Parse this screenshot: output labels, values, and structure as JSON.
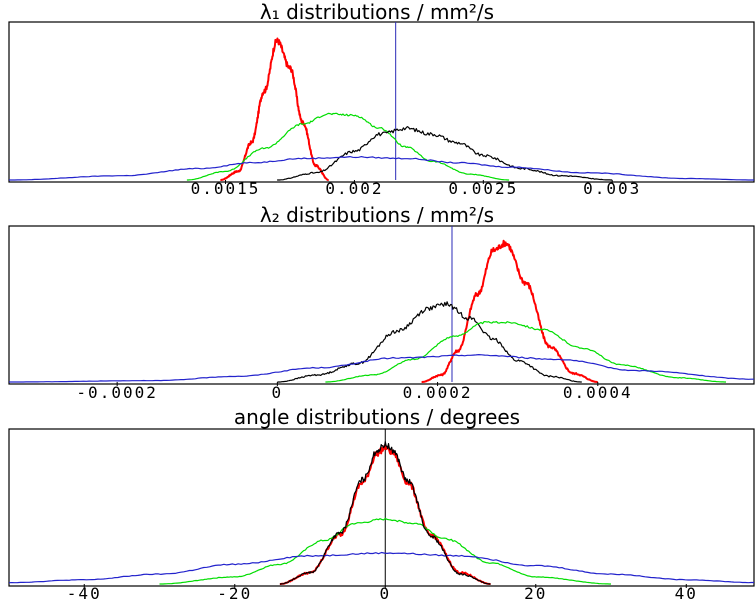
{
  "chart_data": [
    {
      "type": "line",
      "title": "λ₁ distributions / mm²/s",
      "xlim": [
        0.00066,
        0.00355
      ],
      "ylim": [
        0,
        1.1
      ],
      "x_ticks": [
        0.0015,
        0.002,
        0.0025,
        0.003
      ],
      "x_tick_labels": [
        "0.0015",
        "0.002",
        "0.0025",
        "0.003"
      ],
      "vline": {
        "x": 0.00216,
        "color": "#2a2ab8"
      },
      "grid": false,
      "series": [
        {
          "color": "#ff0000",
          "x": [
            0.00148,
            0.00155,
            0.0016,
            0.00165,
            0.0017,
            0.00175,
            0.0018,
            0.00185,
            0.0019
          ],
          "y": [
            0.0,
            0.06,
            0.26,
            0.62,
            0.97,
            0.78,
            0.4,
            0.1,
            0.0
          ]
        },
        {
          "color": "#00dd00",
          "x": [
            0.00135,
            0.0015,
            0.00165,
            0.0018,
            0.0019,
            0.002,
            0.0021,
            0.0022,
            0.0023,
            0.00245,
            0.0026
          ],
          "y": [
            0.0,
            0.06,
            0.22,
            0.39,
            0.46,
            0.45,
            0.36,
            0.23,
            0.13,
            0.04,
            0.0
          ]
        },
        {
          "color": "#000000",
          "x": [
            0.0017,
            0.00185,
            0.002,
            0.0021,
            0.0022,
            0.0023,
            0.0024,
            0.0025,
            0.00265,
            0.0028,
            0.003
          ],
          "y": [
            0.0,
            0.05,
            0.2,
            0.32,
            0.36,
            0.32,
            0.26,
            0.17,
            0.08,
            0.03,
            0.0
          ]
        },
        {
          "color": "#2222cc",
          "x": [
            0.00066,
            0.0011,
            0.0014,
            0.0016,
            0.0018,
            0.002,
            0.0022,
            0.0024,
            0.0026,
            0.0029,
            0.0033,
            0.00355
          ],
          "y": [
            0.0,
            0.03,
            0.08,
            0.12,
            0.15,
            0.16,
            0.15,
            0.12,
            0.09,
            0.05,
            0.01,
            0.0
          ]
        }
      ]
    },
    {
      "type": "line",
      "title": "λ₂ distributions / mm²/s",
      "xlim": [
        -0.000335,
        0.000595
      ],
      "ylim": [
        0,
        1.1
      ],
      "x_ticks": [
        -0.0002,
        0,
        0.0002,
        0.0004
      ],
      "x_tick_labels": [
        "-0.0002",
        "0",
        "0.0002",
        "0.0004"
      ],
      "vline": {
        "x": 0.000218,
        "color": "#2a2ab8"
      },
      "grid": false,
      "series": [
        {
          "color": "#ff0000",
          "x": [
            0.00018,
            0.000205,
            0.000225,
            0.00025,
            0.00027,
            0.000285,
            0.00031,
            0.00034,
            0.00037,
            0.0004
          ],
          "y": [
            0.0,
            0.05,
            0.22,
            0.62,
            0.93,
            0.98,
            0.7,
            0.25,
            0.06,
            0.0
          ]
        },
        {
          "color": "#000000",
          "x": [
            0.0,
            5e-05,
            0.0001,
            0.00015,
            0.00019,
            0.00021,
            0.00024,
            0.00027,
            0.0003,
            0.00034,
            0.00038
          ],
          "y": [
            0.0,
            0.05,
            0.13,
            0.36,
            0.52,
            0.55,
            0.45,
            0.3,
            0.15,
            0.04,
            0.0
          ]
        },
        {
          "color": "#00dd00",
          "x": [
            6e-05,
            0.00012,
            0.00017,
            0.00022,
            0.00026,
            0.00029,
            0.00033,
            0.00038,
            0.00043,
            0.0005,
            0.00056
          ],
          "y": [
            0.0,
            0.05,
            0.16,
            0.32,
            0.42,
            0.42,
            0.37,
            0.24,
            0.12,
            0.03,
            0.0
          ]
        },
        {
          "color": "#2222cc",
          "x": [
            -0.000335,
            -0.00015,
            -5e-05,
            5e-05,
            0.00015,
            0.00025,
            0.00035,
            0.00045,
            0.000595
          ],
          "y": [
            0.0,
            0.01,
            0.04,
            0.1,
            0.17,
            0.19,
            0.16,
            0.08,
            0.02
          ]
        }
      ]
    },
    {
      "type": "line",
      "title": "angle distributions / degrees",
      "xlim": [
        -50,
        49
      ],
      "ylim": [
        0,
        1.1
      ],
      "x_ticks": [
        -40,
        -20,
        0,
        20,
        40
      ],
      "x_tick_labels": [
        "-40",
        "-20",
        "0",
        "20",
        "40"
      ],
      "vline": {
        "x": 0,
        "color": "#000000"
      },
      "grid": false,
      "series": [
        {
          "color": "#ff0000",
          "x": [
            -14,
            -10,
            -6,
            -3,
            -1,
            0,
            1,
            3,
            6,
            10,
            14
          ],
          "y": [
            0.0,
            0.08,
            0.35,
            0.72,
            0.93,
            0.97,
            0.93,
            0.72,
            0.35,
            0.08,
            0.0
          ]
        },
        {
          "color": "#000000",
          "x": [
            -14,
            -10,
            -6,
            -3,
            -1,
            0,
            1,
            3,
            6,
            10,
            14
          ],
          "y": [
            0.0,
            0.08,
            0.36,
            0.74,
            0.95,
            0.99,
            0.95,
            0.73,
            0.34,
            0.07,
            0.0
          ]
        },
        {
          "color": "#00dd00",
          "x": [
            -30,
            -20,
            -14,
            -8,
            -4,
            0,
            4,
            8,
            14,
            20,
            30
          ],
          "y": [
            0.0,
            0.05,
            0.14,
            0.31,
            0.43,
            0.46,
            0.43,
            0.32,
            0.15,
            0.05,
            0.0
          ]
        },
        {
          "color": "#2222cc",
          "x": [
            -50,
            -40,
            -30,
            -20,
            -10,
            0,
            10,
            20,
            30,
            40,
            49
          ],
          "y": [
            0.01,
            0.03,
            0.07,
            0.14,
            0.2,
            0.22,
            0.2,
            0.13,
            0.07,
            0.03,
            0.01
          ]
        }
      ]
    }
  ]
}
